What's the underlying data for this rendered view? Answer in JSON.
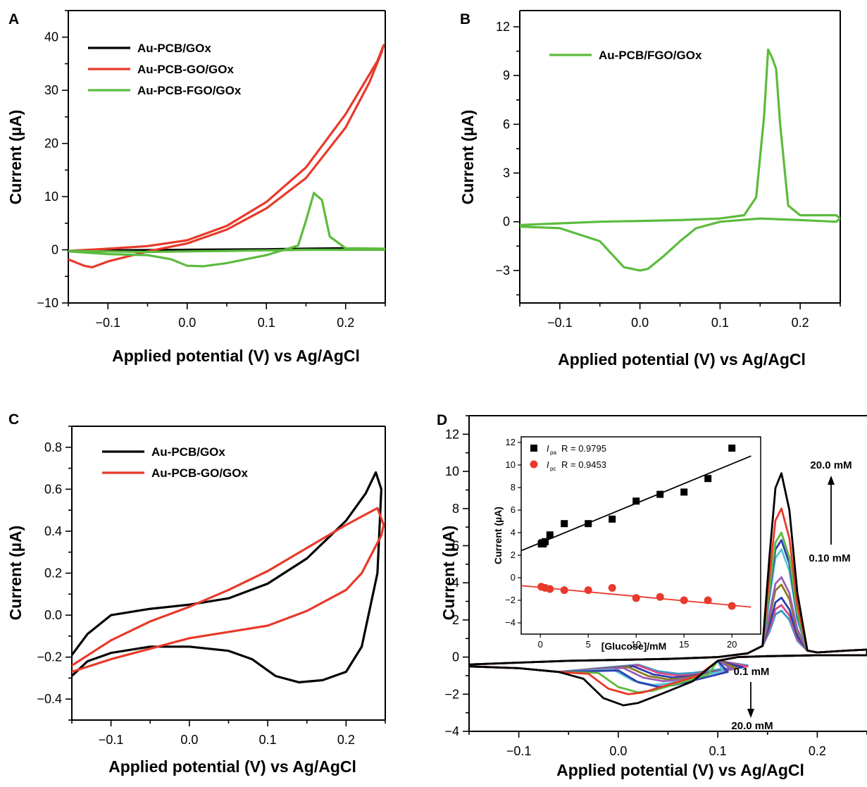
{
  "chart_data": [
    {
      "panel": "A",
      "type": "line",
      "xlabel": "Applied potential (V) vs Ag/AgCl",
      "ylabel": "Current (µA)",
      "xlim": [
        -0.15,
        0.25
      ],
      "ylim": [
        -10,
        45
      ],
      "xticks": [
        -0.1,
        0.0,
        0.1,
        0.2
      ],
      "xtick_labels": [
        "−0.1",
        "0.0",
        "0.1",
        "0.2"
      ],
      "yticks": [
        -10,
        0,
        10,
        20,
        30,
        40
      ],
      "ytick_labels": [
        "−10",
        "0",
        "10",
        "20",
        "30",
        "40"
      ],
      "series": [
        {
          "name": "Au-PCB/GOx",
          "color": "#000000",
          "x": [
            -0.15,
            -0.1,
            -0.05,
            0.0,
            0.05,
            0.1,
            0.15,
            0.2,
            0.2,
            0.1,
            0.0,
            -0.1,
            -0.15
          ],
          "y": [
            -0.3,
            -0.2,
            -0.1,
            0.0,
            0.05,
            0.1,
            0.2,
            0.3,
            0.2,
            0.1,
            0.0,
            -0.1,
            -0.3
          ]
        },
        {
          "name": "Au-PCB-GO/GOx",
          "color": "#e8392a",
          "x": [
            -0.15,
            -0.13,
            -0.12,
            -0.1,
            -0.05,
            0.0,
            0.05,
            0.1,
            0.15,
            0.2,
            0.23,
            0.245,
            0.248,
            0.24,
            0.2,
            0.15,
            0.1,
            0.05,
            0.0,
            -0.05,
            -0.1,
            -0.15
          ],
          "y": [
            -1.8,
            -3.0,
            -3.3,
            -2.2,
            -0.3,
            1.2,
            3.8,
            7.8,
            13.5,
            23.0,
            31.5,
            37.0,
            38.5,
            35.5,
            25.5,
            15.5,
            9.0,
            4.5,
            1.8,
            0.7,
            0.2,
            -0.2
          ]
        },
        {
          "name": "Au-PCB-FGO/GOx",
          "color": "#5cbb3e",
          "x": [
            -0.15,
            -0.1,
            -0.05,
            -0.02,
            0.0,
            0.02,
            0.05,
            0.1,
            0.14,
            0.15,
            0.16,
            0.165,
            0.17,
            0.18,
            0.2,
            0.25,
            0.25,
            0.2,
            0.15,
            0.1,
            0.05,
            0.0,
            -0.05,
            -0.1,
            -0.15
          ],
          "y": [
            -0.3,
            -0.8,
            -1.0,
            -1.8,
            -3.0,
            -3.1,
            -2.5,
            -1.0,
            0.8,
            5.5,
            10.7,
            10.0,
            9.4,
            2.5,
            0.3,
            0.2,
            0.0,
            0.0,
            0.0,
            -0.1,
            -0.2,
            -0.3,
            -0.4,
            -0.3,
            -0.2
          ]
        }
      ]
    },
    {
      "panel": "B",
      "type": "line",
      "xlabel": "Applied potential (V) vs Ag/AgCl",
      "ylabel": "Current (µA)",
      "xlim": [
        -0.15,
        0.25
      ],
      "ylim": [
        -5,
        13
      ],
      "xticks": [
        -0.1,
        0.0,
        0.1,
        0.2
      ],
      "xtick_labels": [
        "−0.1",
        "0.0",
        "0.1",
        "0.2"
      ],
      "yticks": [
        -3,
        0,
        3,
        6,
        9,
        12
      ],
      "ytick_labels": [
        "−3",
        "0",
        "3",
        "6",
        "9",
        "12"
      ],
      "series": [
        {
          "name": "Au-PCB/FGO/GOx",
          "color": "#5cbb3e",
          "x": [
            -0.15,
            -0.1,
            -0.05,
            0.0,
            0.05,
            0.1,
            0.13,
            0.145,
            0.155,
            0.16,
            0.165,
            0.17,
            0.175,
            0.185,
            0.2,
            0.245,
            0.25,
            0.245,
            0.2,
            0.15,
            0.1,
            0.07,
            0.05,
            0.03,
            0.01,
            0.0,
            -0.02,
            -0.05,
            -0.1,
            -0.15
          ],
          "y": [
            -0.2,
            -0.1,
            0.0,
            0.05,
            0.1,
            0.2,
            0.4,
            1.5,
            6.5,
            10.6,
            10.1,
            9.4,
            6.0,
            1.0,
            0.4,
            0.4,
            0.2,
            0.0,
            0.1,
            0.2,
            0.0,
            -0.4,
            -1.2,
            -2.1,
            -2.9,
            -3.0,
            -2.8,
            -1.2,
            -0.4,
            -0.3
          ]
        }
      ]
    },
    {
      "panel": "C",
      "type": "line",
      "xlabel": "Applied potential (V) vs Ag/AgCl",
      "ylabel": "Current (µA)",
      "xlim": [
        -0.15,
        0.25
      ],
      "ylim": [
        -0.5,
        0.9
      ],
      "xticks": [
        -0.1,
        0.0,
        0.1,
        0.2
      ],
      "xtick_labels": [
        "−0.1",
        "0.0",
        "0.1",
        "0.2"
      ],
      "yticks": [
        -0.4,
        -0.2,
        0.0,
        0.2,
        0.4,
        0.6,
        0.8
      ],
      "ytick_labels": [
        "−0.4",
        "−0.2",
        "0.0",
        "0.2",
        "0.4",
        "0.6",
        "0.8"
      ],
      "series": [
        {
          "name": "Au-PCB/GOx",
          "color": "#000000",
          "x": [
            -0.15,
            -0.13,
            -0.1,
            -0.05,
            0.0,
            0.05,
            0.1,
            0.15,
            0.2,
            0.225,
            0.238,
            0.245,
            0.24,
            0.22,
            0.2,
            0.17,
            0.14,
            0.11,
            0.08,
            0.05,
            0.0,
            -0.05,
            -0.1,
            -0.13,
            -0.15
          ],
          "y": [
            -0.19,
            -0.09,
            0.0,
            0.03,
            0.05,
            0.08,
            0.15,
            0.27,
            0.45,
            0.58,
            0.68,
            0.6,
            0.2,
            -0.15,
            -0.27,
            -0.31,
            -0.32,
            -0.29,
            -0.21,
            -0.17,
            -0.15,
            -0.15,
            -0.18,
            -0.22,
            -0.29
          ]
        },
        {
          "name": "Au-PCB-GO/GOx",
          "color": "#e8392a",
          "x": [
            -0.15,
            -0.1,
            -0.05,
            0.0,
            0.05,
            0.1,
            0.15,
            0.2,
            0.23,
            0.24,
            0.248,
            0.245,
            0.22,
            0.2,
            0.15,
            0.1,
            0.05,
            0.0,
            -0.05,
            -0.1,
            -0.15
          ],
          "y": [
            -0.24,
            -0.12,
            -0.03,
            0.04,
            0.12,
            0.21,
            0.32,
            0.43,
            0.49,
            0.51,
            0.43,
            0.38,
            0.2,
            0.12,
            0.02,
            -0.05,
            -0.08,
            -0.11,
            -0.16,
            -0.21,
            -0.27
          ]
        }
      ]
    },
    {
      "panel": "D",
      "type": "line",
      "xlabel": "Applied potential (V) vs Ag/AgCl",
      "ylabel": "Current (µA)",
      "xlim": [
        -0.15,
        0.25
      ],
      "ylim": [
        -4,
        13
      ],
      "xticks": [
        -0.1,
        0.0,
        0.1,
        0.2
      ],
      "xtick_labels": [
        "−0.1",
        "0.0",
        "0.1",
        "0.2"
      ],
      "yticks": [
        -4,
        -2,
        0,
        2,
        4,
        6,
        8,
        10,
        12
      ],
      "ytick_labels": [
        "−4",
        "−2",
        "0",
        "2",
        "4",
        "6",
        "8",
        "10",
        "12"
      ],
      "series": [
        {
          "name": "",
          "color": "#000000",
          "peak": 9.9,
          "trough": -2.6,
          "trough_x": 0.005
        },
        {
          "name": "",
          "color": "#e8392a",
          "peak": 8.0,
          "trough": -2.0,
          "trough_x": 0.01
        },
        {
          "name": "",
          "color": "#5cbb3e",
          "peak": 6.7,
          "trough": -1.9,
          "trough_x": 0.02
        },
        {
          "name": "",
          "color": "#2f3fb0",
          "peak": 6.3,
          "trough": -1.6,
          "trough_x": 0.04
        },
        {
          "name": "",
          "color": "#56c5d8",
          "peak": 5.8,
          "trough": -1.5,
          "trough_x": 0.035
        },
        {
          "name": "",
          "color": "#9a5fb5",
          "peak": 4.3,
          "trough": -1.3,
          "trough_x": 0.045
        },
        {
          "name": "",
          "color": "#8c7a1e",
          "peak": 3.9,
          "trough": -1.2,
          "trough_x": 0.05
        },
        {
          "name": "",
          "color": "#2f3fb0",
          "peak": 3.2,
          "trough": -1.1,
          "trough_x": 0.055
        },
        {
          "name": "",
          "color": "#d84a8a",
          "peak": 2.8,
          "trough": -1.0,
          "trough_x": 0.06
        },
        {
          "name": "",
          "color": "#3a9ac0",
          "peak": 2.5,
          "trough": -0.9,
          "trough_x": 0.06
        }
      ],
      "annotations": [
        {
          "text": "20.0 mM"
        },
        {
          "text": "0.10 mM"
        },
        {
          "text": "0.1 mM"
        },
        {
          "text": "20.0 mM"
        }
      ],
      "inset": {
        "type": "scatter",
        "xlabel": "[Glucose]/mM",
        "ylabel": "Current (µA)",
        "xlim": [
          -2,
          23
        ],
        "ylim": [
          -5,
          12.5
        ],
        "xticks": [
          0,
          5,
          10,
          15,
          20
        ],
        "xtick_labels": [
          "0",
          "5",
          "10",
          "15",
          "20"
        ],
        "yticks": [
          -4,
          -2,
          0,
          2,
          4,
          6,
          8,
          10,
          12
        ],
        "ytick_labels": [
          "−4",
          "−2",
          "0",
          "2",
          "4",
          "6",
          "8",
          "10",
          "12"
        ],
        "series": [
          {
            "sub": "pa",
            "r_label": "R = 0.9795",
            "color": "#000000",
            "marker": "square",
            "x": [
              0.1,
              0.2,
              0.3,
              0.5,
              1.0,
              2.5,
              5.0,
              7.5,
              10.0,
              12.5,
              15.0,
              17.5,
              20.0
            ],
            "y": [
              3.0,
              3.1,
              3.0,
              3.2,
              3.8,
              4.8,
              4.8,
              5.2,
              6.8,
              7.4,
              7.6,
              8.8,
              11.5
            ],
            "fit": [
              [
                -2,
                2.4
              ],
              [
                22,
                10.8
              ]
            ]
          },
          {
            "sub": "pc",
            "r_label": "R = 0.9453",
            "color": "#e8392a",
            "marker": "circle",
            "x": [
              0.1,
              0.5,
              1.0,
              2.5,
              5.0,
              7.5,
              10.0,
              12.5,
              15.0,
              17.5,
              20.0
            ],
            "y": [
              -0.8,
              -0.9,
              -1.0,
              -1.1,
              -1.1,
              -0.9,
              -1.8,
              -1.7,
              -2.0,
              -2.0,
              -2.5
            ],
            "fit": [
              [
                -2,
                -0.7
              ],
              [
                22,
                -2.6
              ]
            ]
          }
        ]
      }
    }
  ]
}
